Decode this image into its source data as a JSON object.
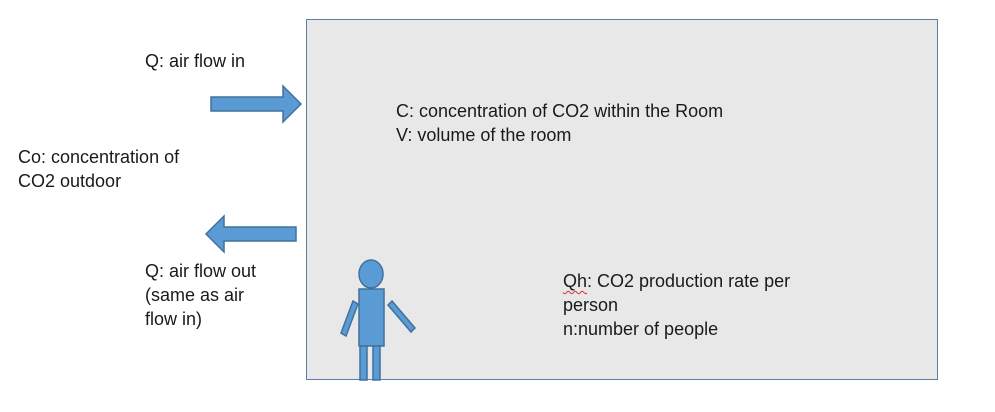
{
  "labels": {
    "air_in": "Q: air flow in",
    "outdoor_co2": [
      "Co: concentration of",
      "CO2 outdoor"
    ],
    "air_out": [
      "Q: air flow out",
      "(same as air",
      "flow in)"
    ],
    "room": [
      "C: concentration of CO2 within the Room",
      "V: volume of the room"
    ],
    "production": {
      "symbol": "Qh",
      "line1_rest": ": CO2 production rate per",
      "line2": "person",
      "line3": "n:number of people"
    }
  },
  "colors": {
    "shape_fill": "#5b9bd5",
    "shape_stroke": "#41719c",
    "room_fill": "#e8e8e8",
    "room_border": "#5b7fa6",
    "spell_underline": "#d9302c"
  }
}
